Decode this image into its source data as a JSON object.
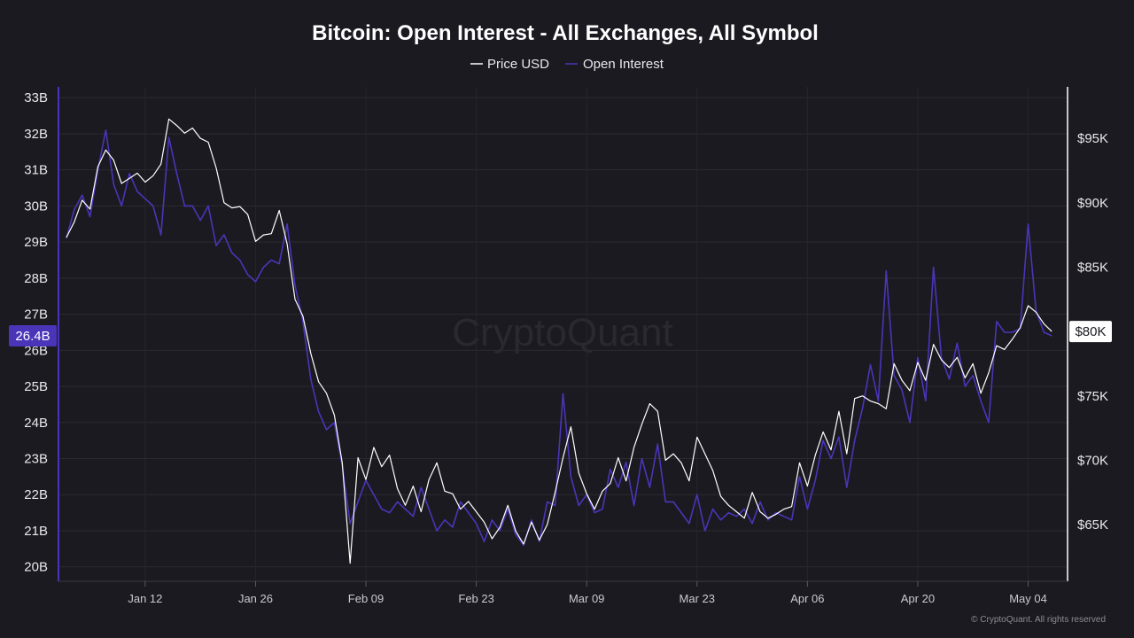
{
  "chart_data": {
    "type": "line",
    "title": "Bitcoin: Open Interest - All Exchanges, All Symbol",
    "watermark": "CryptoQuant",
    "credit": "© CryptoQuant. All rights reserved",
    "legend": [
      {
        "label": "Price USD",
        "color": "#ffffff"
      },
      {
        "label": "Open Interest",
        "color": "#4a35b8"
      }
    ],
    "left_axis": {
      "ticks": [
        "33B",
        "32B",
        "31B",
        "30B",
        "29B",
        "28B",
        "27B",
        "26B",
        "25B",
        "24B",
        "23B",
        "22B",
        "21B",
        "20B"
      ],
      "tick_values": [
        33,
        32,
        31,
        30,
        29,
        28,
        27,
        26,
        25,
        24,
        23,
        22,
        21,
        20
      ],
      "ylim": [
        19.6,
        33.3
      ],
      "unit": "B"
    },
    "right_axis": {
      "ticks": [
        "$95K",
        "$90K",
        "$85K",
        "$80K",
        "$75K",
        "$70K",
        "$65K"
      ],
      "tick_values": [
        95,
        90,
        85,
        80,
        75,
        70,
        65
      ],
      "ylim": [
        60.6,
        99.0
      ],
      "unit": "K USD"
    },
    "x_axis": {
      "ticks": [
        "Jan 12",
        "Jan 26",
        "Feb 09",
        "Feb 23",
        "Mar 09",
        "Mar 23",
        "Apr 06",
        "Apr 20",
        "May 04"
      ],
      "tick_days": [
        11,
        25,
        39,
        53,
        67,
        81,
        95,
        109,
        123
      ],
      "xlim": [
        0,
        128
      ],
      "tick_day_unit": "days since Jan 1"
    },
    "current_values": {
      "open_interest": "26.4B",
      "price": "$80K"
    },
    "grid": true,
    "series": [
      {
        "name": "Price USD",
        "unit": "K USD",
        "color": "#ffffff",
        "points": [
          [
            1,
            87.3
          ],
          [
            2,
            88.5
          ],
          [
            3,
            90.2
          ],
          [
            4,
            89.5
          ],
          [
            5,
            92.8
          ],
          [
            6,
            94.1
          ],
          [
            7,
            93.3
          ],
          [
            8,
            91.5
          ],
          [
            9,
            91.9
          ],
          [
            10,
            92.3
          ],
          [
            11,
            91.6
          ],
          [
            12,
            92.1
          ],
          [
            13,
            93.0
          ],
          [
            14,
            96.5
          ],
          [
            15,
            96.0
          ],
          [
            16,
            95.4
          ],
          [
            17,
            95.8
          ],
          [
            18,
            95.0
          ],
          [
            19,
            94.7
          ],
          [
            20,
            92.7
          ],
          [
            21,
            90.0
          ],
          [
            22,
            89.6
          ],
          [
            23,
            89.7
          ],
          [
            24,
            89.1
          ],
          [
            25,
            87.0
          ],
          [
            26,
            87.5
          ],
          [
            27,
            87.6
          ],
          [
            28,
            89.4
          ],
          [
            29,
            86.8
          ],
          [
            30,
            82.5
          ],
          [
            31,
            81.2
          ],
          [
            32,
            78.3
          ],
          [
            33,
            76.1
          ],
          [
            34,
            75.2
          ],
          [
            35,
            73.5
          ],
          [
            36,
            69.8
          ],
          [
            37,
            62.0
          ],
          [
            38,
            70.2
          ],
          [
            39,
            68.5
          ],
          [
            40,
            71.0
          ],
          [
            41,
            69.5
          ],
          [
            42,
            70.4
          ],
          [
            43,
            67.8
          ],
          [
            44,
            66.5
          ],
          [
            45,
            68.0
          ],
          [
            46,
            66.0
          ],
          [
            47,
            68.5
          ],
          [
            48,
            69.8
          ],
          [
            49,
            67.6
          ],
          [
            50,
            67.4
          ],
          [
            51,
            66.2
          ],
          [
            52,
            66.8
          ],
          [
            53,
            66.0
          ],
          [
            54,
            65.2
          ],
          [
            55,
            63.9
          ],
          [
            56,
            64.8
          ],
          [
            57,
            66.5
          ],
          [
            58,
            64.5
          ],
          [
            59,
            63.5
          ],
          [
            60,
            65.2
          ],
          [
            61,
            63.8
          ],
          [
            62,
            65.0
          ],
          [
            63,
            67.5
          ],
          [
            64,
            70.2
          ],
          [
            65,
            72.6
          ],
          [
            66,
            69.0
          ],
          [
            67,
            67.4
          ],
          [
            68,
            66.2
          ],
          [
            69,
            67.6
          ],
          [
            70,
            68.2
          ],
          [
            71,
            70.2
          ],
          [
            72,
            68.4
          ],
          [
            73,
            71.0
          ],
          [
            74,
            72.8
          ],
          [
            75,
            74.4
          ],
          [
            76,
            73.8
          ],
          [
            77,
            70.0
          ],
          [
            78,
            70.5
          ],
          [
            79,
            69.8
          ],
          [
            80,
            68.4
          ],
          [
            81,
            71.8
          ],
          [
            82,
            70.5
          ],
          [
            83,
            69.2
          ],
          [
            84,
            67.2
          ],
          [
            85,
            66.5
          ],
          [
            86,
            66.0
          ],
          [
            87,
            65.5
          ],
          [
            88,
            67.5
          ],
          [
            89,
            66.0
          ],
          [
            90,
            65.5
          ],
          [
            91,
            65.8
          ],
          [
            92,
            66.2
          ],
          [
            93,
            66.4
          ],
          [
            94,
            69.8
          ],
          [
            95,
            68.0
          ],
          [
            96,
            70.4
          ],
          [
            97,
            72.2
          ],
          [
            98,
            70.8
          ],
          [
            99,
            73.8
          ],
          [
            100,
            70.5
          ],
          [
            101,
            74.8
          ],
          [
            102,
            75.0
          ],
          [
            103,
            74.6
          ],
          [
            104,
            74.4
          ],
          [
            105,
            74.0
          ],
          [
            106,
            77.5
          ],
          [
            107,
            76.2
          ],
          [
            108,
            75.4
          ],
          [
            109,
            77.6
          ],
          [
            110,
            76.2
          ],
          [
            111,
            79.0
          ],
          [
            112,
            77.8
          ],
          [
            113,
            77.2
          ],
          [
            114,
            78.0
          ],
          [
            115,
            76.4
          ],
          [
            116,
            77.5
          ],
          [
            117,
            75.2
          ],
          [
            118,
            76.8
          ],
          [
            119,
            78.9
          ],
          [
            120,
            78.6
          ],
          [
            121,
            79.4
          ],
          [
            122,
            80.3
          ],
          [
            123,
            82.0
          ],
          [
            124,
            81.5
          ],
          [
            125,
            80.6
          ],
          [
            126,
            80.0
          ]
        ]
      },
      {
        "name": "Open Interest",
        "unit": "B",
        "color": "#4a35b8",
        "points": [
          [
            1,
            29.1
          ],
          [
            2,
            29.9
          ],
          [
            3,
            30.3
          ],
          [
            4,
            29.7
          ],
          [
            5,
            31.0
          ],
          [
            6,
            32.1
          ],
          [
            7,
            30.6
          ],
          [
            8,
            30.0
          ],
          [
            9,
            30.9
          ],
          [
            10,
            30.4
          ],
          [
            11,
            30.2
          ],
          [
            12,
            30.0
          ],
          [
            13,
            29.2
          ],
          [
            14,
            31.9
          ],
          [
            15,
            30.9
          ],
          [
            16,
            30.0
          ],
          [
            17,
            30.0
          ],
          [
            18,
            29.6
          ],
          [
            19,
            30.0
          ],
          [
            20,
            28.9
          ],
          [
            21,
            29.2
          ],
          [
            22,
            28.7
          ],
          [
            23,
            28.5
          ],
          [
            24,
            28.1
          ],
          [
            25,
            27.9
          ],
          [
            26,
            28.3
          ],
          [
            27,
            28.5
          ],
          [
            28,
            28.4
          ],
          [
            29,
            29.5
          ],
          [
            30,
            27.8
          ],
          [
            31,
            26.8
          ],
          [
            32,
            25.2
          ],
          [
            33,
            24.3
          ],
          [
            34,
            23.8
          ],
          [
            35,
            24.0
          ],
          [
            36,
            22.8
          ],
          [
            37,
            21.2
          ],
          [
            38,
            21.8
          ],
          [
            39,
            22.4
          ],
          [
            40,
            22.0
          ],
          [
            41,
            21.6
          ],
          [
            42,
            21.5
          ],
          [
            43,
            21.8
          ],
          [
            44,
            21.6
          ],
          [
            45,
            21.4
          ],
          [
            46,
            22.2
          ],
          [
            47,
            21.6
          ],
          [
            48,
            21.0
          ],
          [
            49,
            21.3
          ],
          [
            50,
            21.1
          ],
          [
            51,
            21.8
          ],
          [
            52,
            21.5
          ],
          [
            53,
            21.2
          ],
          [
            54,
            20.7
          ],
          [
            55,
            21.3
          ],
          [
            56,
            21.0
          ],
          [
            57,
            21.6
          ],
          [
            58,
            20.9
          ],
          [
            59,
            20.6
          ],
          [
            60,
            21.3
          ],
          [
            61,
            20.7
          ],
          [
            62,
            21.8
          ],
          [
            63,
            21.7
          ],
          [
            64,
            24.8
          ],
          [
            65,
            22.5
          ],
          [
            66,
            21.7
          ],
          [
            67,
            22.0
          ],
          [
            68,
            21.5
          ],
          [
            69,
            21.6
          ],
          [
            70,
            22.7
          ],
          [
            71,
            22.2
          ],
          [
            72,
            22.9
          ],
          [
            73,
            21.7
          ],
          [
            74,
            23.0
          ],
          [
            75,
            22.2
          ],
          [
            76,
            23.4
          ],
          [
            77,
            21.8
          ],
          [
            78,
            21.8
          ],
          [
            79,
            21.5
          ],
          [
            80,
            21.2
          ],
          [
            81,
            22.0
          ],
          [
            82,
            21.0
          ],
          [
            83,
            21.6
          ],
          [
            84,
            21.3
          ],
          [
            85,
            21.5
          ],
          [
            86,
            21.4
          ],
          [
            87,
            21.6
          ],
          [
            88,
            21.2
          ],
          [
            89,
            21.8
          ],
          [
            90,
            21.3
          ],
          [
            91,
            21.5
          ],
          [
            92,
            21.4
          ],
          [
            93,
            21.3
          ],
          [
            94,
            22.5
          ],
          [
            95,
            21.6
          ],
          [
            96,
            22.4
          ],
          [
            97,
            23.5
          ],
          [
            98,
            23.0
          ],
          [
            99,
            23.6
          ],
          [
            100,
            22.2
          ],
          [
            101,
            23.5
          ],
          [
            102,
            24.4
          ],
          [
            103,
            25.6
          ],
          [
            104,
            24.6
          ],
          [
            105,
            28.2
          ],
          [
            106,
            25.3
          ],
          [
            107,
            24.9
          ],
          [
            108,
            24.0
          ],
          [
            109,
            25.8
          ],
          [
            110,
            24.6
          ],
          [
            111,
            28.3
          ],
          [
            112,
            25.8
          ],
          [
            113,
            25.2
          ],
          [
            114,
            26.2
          ],
          [
            115,
            25.0
          ],
          [
            116,
            25.3
          ],
          [
            117,
            24.6
          ],
          [
            118,
            24.0
          ],
          [
            119,
            26.8
          ],
          [
            120,
            26.5
          ],
          [
            121,
            26.5
          ],
          [
            122,
            26.6
          ],
          [
            123,
            29.5
          ],
          [
            124,
            27.1
          ],
          [
            125,
            26.5
          ],
          [
            126,
            26.4
          ]
        ]
      }
    ]
  }
}
